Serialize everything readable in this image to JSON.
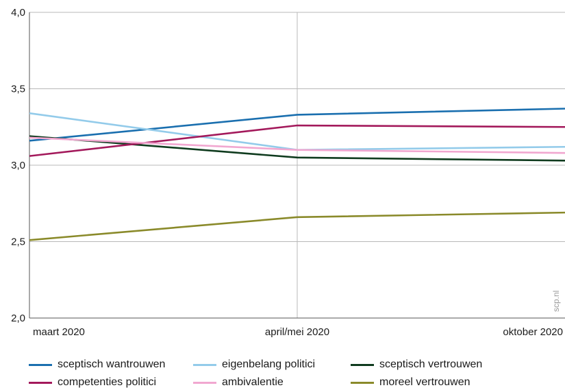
{
  "chart_data": {
    "type": "line",
    "title": "",
    "xlabel": "",
    "ylabel": "",
    "x": [
      "maart 2020",
      "april/mei 2020",
      "oktober 2020"
    ],
    "ylim": [
      2.0,
      4.0
    ],
    "yticks": [
      "2,0",
      "2,5",
      "3,0",
      "3,5",
      "4,0"
    ],
    "grid": true,
    "legend_position": "bottom",
    "watermark": "scp.nl",
    "series": [
      {
        "name": "sceptisch wantrouwen",
        "color": "#1a6faf",
        "values": [
          3.16,
          3.33,
          3.37
        ]
      },
      {
        "name": "eigenbelang politici",
        "color": "#93cbea",
        "values": [
          3.34,
          3.1,
          3.12
        ]
      },
      {
        "name": "sceptisch vertrouwen",
        "color": "#0f3b1e",
        "values": [
          3.19,
          3.05,
          3.03
        ]
      },
      {
        "name": "competenties politici",
        "color": "#a3195b",
        "values": [
          3.06,
          3.26,
          3.25
        ]
      },
      {
        "name": "ambivalentie",
        "color": "#f1a7d0",
        "values": [
          3.18,
          3.1,
          3.08
        ]
      },
      {
        "name": "moreel vertrouwen",
        "color": "#8a8a2a",
        "values": [
          2.51,
          2.66,
          2.69
        ]
      }
    ]
  }
}
